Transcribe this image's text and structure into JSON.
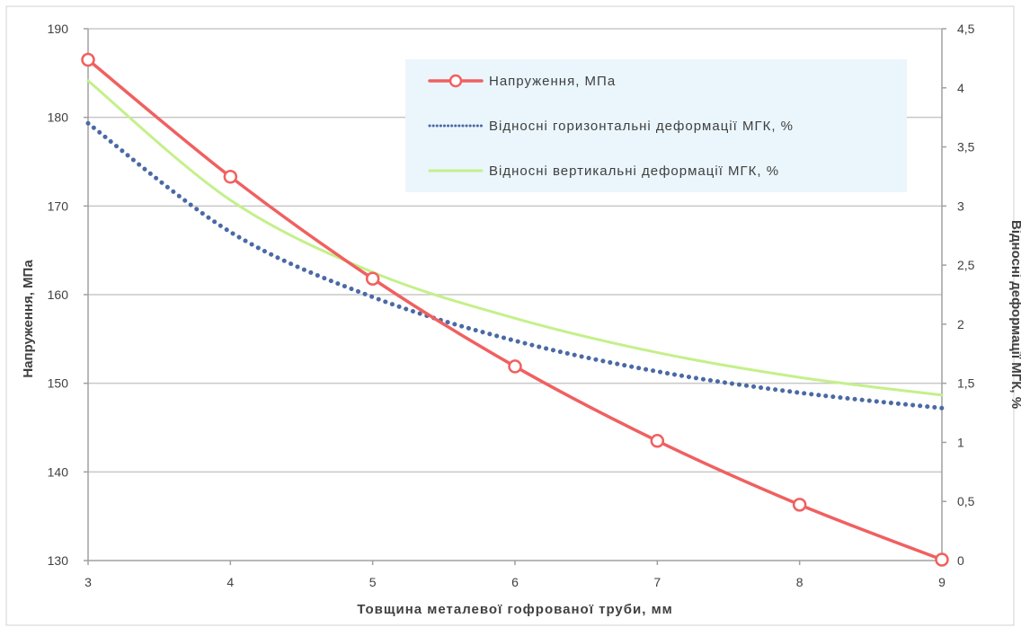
{
  "chart_data": {
    "type": "line",
    "xlabel": "Товщина металевої гофрованої труби, мм",
    "ylabel_left": "Напруження, МПа",
    "ylabel_right": "Відносні деформації МГК, %",
    "x": [
      3,
      4,
      5,
      6,
      7,
      8,
      9
    ],
    "x_ticks": [
      "3",
      "4",
      "5",
      "6",
      "7",
      "8",
      "9"
    ],
    "ylim_left": [
      130,
      190
    ],
    "y_ticks_left": [
      "130",
      "140",
      "150",
      "160",
      "170",
      "180",
      "190"
    ],
    "ylim_right": [
      0,
      4.5
    ],
    "y_ticks_right": [
      "0",
      "0,5",
      "1",
      "1,5",
      "2",
      "2,5",
      "3",
      "3,5",
      "4",
      "4,5"
    ],
    "grid": "horizontal",
    "legend": "top-right",
    "series": [
      {
        "name": "Напруження, МПа",
        "axis": "left",
        "style": "solid-markers",
        "color": "#f06060",
        "values": [
          186.5,
          173.3,
          161.8,
          151.9,
          143.5,
          136.3,
          130.1
        ]
      },
      {
        "name": "Відносні горизонтальні деформації МГК, %",
        "axis": "right",
        "style": "dotted",
        "color": "#4a6aa5",
        "values": [
          3.7,
          2.78,
          2.23,
          1.86,
          1.6,
          1.42,
          1.29
        ]
      },
      {
        "name": "Відносні вертикальні деформації МГК, %",
        "axis": "right",
        "style": "solid",
        "color": "#c4f08a",
        "values": [
          4.06,
          3.05,
          2.44,
          2.05,
          1.76,
          1.55,
          1.4
        ]
      }
    ]
  }
}
